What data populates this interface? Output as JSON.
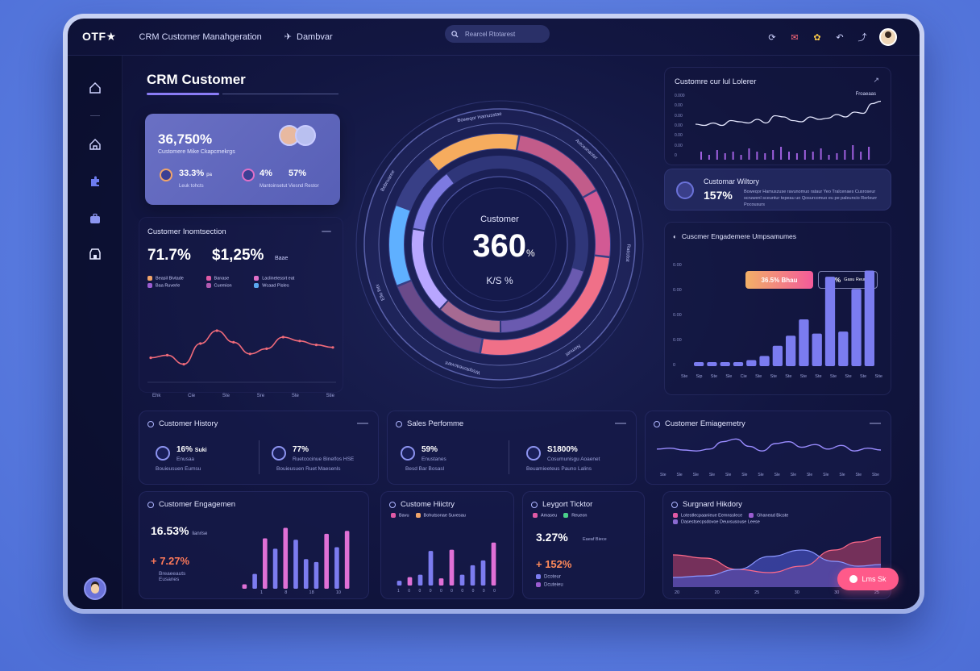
{
  "topbar": {
    "logo": "OTF★",
    "app_title": "CRM Customer Manahgeration",
    "dash_label": "Dambvar",
    "search_text": "Rearcel Rtotarest"
  },
  "header": {
    "title": "CRM Customer"
  },
  "hero_card": {
    "value": "36,750%",
    "subtitle": "Customere Mike Ckapcmekrgs",
    "stat1": "33.3%",
    "stat1_suffix": "pa",
    "stat1_label": "Leuk tohcts",
    "stat2": "4%",
    "stat2_label": "Mantoinsetut",
    "stat3": "57%",
    "stat3_label": "Viesnd Restor"
  },
  "info_panel": {
    "title": "Customer Inomtsection",
    "value1": "71.7%",
    "value2": "$1,25%",
    "value2_suffix": "Baae",
    "legend": [
      {
        "label": "Beasil Bivtade",
        "color": "#f0a46a"
      },
      {
        "label": "Banase",
        "color": "#e05aa5"
      },
      {
        "label": "Laclinetessrt eat",
        "color": "#e070c8"
      },
      {
        "label": "Baa Ruverle",
        "color": "#9a5cd0"
      },
      {
        "label": "Cuemion",
        "color": "#b05ab0"
      },
      {
        "label": "Wcaad Pisles",
        "color": "#5aa8f0"
      }
    ],
    "x_labels": [
      "Ehk",
      "Cie",
      "Ste",
      "Sre",
      "Ste",
      "Stie"
    ],
    "line_points": [
      38,
      42,
      28,
      60,
      80,
      62,
      44,
      52,
      70,
      64,
      58,
      54
    ],
    "line_color": "#f06a7a"
  },
  "gauge": {
    "label": "Customer",
    "value": "360",
    "unit": "%",
    "sublabel": "K/S %",
    "ring_labels": [
      "Boweqor Hamusstae",
      "Avtcesnaoter",
      "Ratiobst",
      "Nomuet",
      "Wssptoneauvant",
      "Eflo lhtx",
      "Bebnvaree"
    ],
    "outer_segments": [
      {
        "pct": 0.14,
        "color": "#f6ac5e"
      },
      {
        "pct": 0.14,
        "color": "#c25c8a"
      },
      {
        "pct": 0.1,
        "color": "#d25a94"
      },
      {
        "pct": 0.26,
        "color": "#f07088"
      },
      {
        "pct": 0.16,
        "color": "#6a4a8a"
      },
      {
        "pct": 0.12,
        "color": "#5fb0ff"
      }
    ],
    "inner_segments": [
      {
        "pct": 0.2,
        "color": "#6a5ab0"
      },
      {
        "pct": 0.12,
        "color": "#a66a92"
      },
      {
        "pct": 0.16,
        "color": "#b8a6ff"
      },
      {
        "pct": 0.12,
        "color": "#7d7ae0"
      }
    ]
  },
  "sparkline_panel": {
    "title": "Customre cur lul Lolerer",
    "legend": "Froaeaas",
    "y_labels": [
      "0.000",
      "0.00",
      "0.00",
      "0.00",
      "0.00",
      "0.00",
      "0"
    ],
    "line_points": [
      32,
      30,
      34,
      30,
      38,
      36,
      34,
      40,
      34,
      46,
      44,
      38,
      36,
      44,
      40,
      42,
      48,
      44,
      52,
      50,
      66,
      70
    ],
    "bars": [
      10,
      6,
      12,
      8,
      10,
      6,
      14,
      10,
      8,
      12,
      16,
      10,
      8,
      12,
      10,
      14,
      6,
      8,
      12,
      18,
      10,
      16
    ]
  },
  "history_mini": {
    "title": "Customar Wiltory",
    "value": "157%",
    "desc": "Boweqor Hamuszuse ravunomuo rataur Yeo Tralcenaes Cusroseur scruwenl sceuntur tepeau uo Qosurcomuo eu pe paleuncio Rerleurr Pocousurs"
  },
  "engagement_bars": {
    "title": "Cuscmer Engademere Umpsamumes",
    "y_labels": [
      "0.00",
      "0.00",
      "0.00",
      "0.00",
      "0"
    ],
    "x_labels": [
      "Ste",
      "Sip",
      "Ste",
      "Sle",
      "Cie",
      "Ste",
      "Ste",
      "Ste",
      "Ste",
      "Ste",
      "Ste",
      "Ste",
      "Ste",
      "Stie"
    ],
    "badge1": "36.5% Bhau",
    "badge2": "97%",
    "badge2_suffix": "Gasu Reure",
    "values": [
      0.04,
      0.04,
      0.04,
      0.04,
      0.06,
      0.1,
      0.2,
      0.3,
      0.46,
      0.32,
      0.88,
      0.34,
      0.76,
      0.94
    ]
  },
  "row2": [
    {
      "title": "Customer History",
      "a_value": "16%",
      "a_suffix": "Suki",
      "a_label": "Enusaa",
      "a_foot": "Bouieusuen Eumsu",
      "b_value": "77%",
      "b_label": "Ruetcocinue Binelfos HSE",
      "b_foot": "Bouieusuen Ruet Maesenls"
    },
    {
      "title": "Sales Perfomme",
      "a_value": "59%",
      "a_label": "Enustanes",
      "a_foot": "Besd Bar Bosasl",
      "b_value": "S1800%",
      "b_label": "Cosumunisgu Aoaenet",
      "b_foot": "Beuamieeteus Pauno Lalins"
    },
    {
      "title": "Customer Emiagemetry",
      "x_labels": [
        "Ste",
        "Sle",
        "Sle",
        "Sle",
        "Sle",
        "Sle",
        "Sle",
        "Sle",
        "Sle",
        "Sle",
        "Sle",
        "Sle",
        "Ste",
        "Sbe"
      ],
      "line_points": [
        44,
        46,
        42,
        40,
        44,
        60,
        66,
        50,
        40,
        56,
        60,
        48,
        54,
        44,
        52,
        40,
        46,
        42
      ]
    }
  ],
  "row3": [
    {
      "title": "Customer Engagemen",
      "value": "16.53%",
      "suffix": "lianrise",
      "delta": "+ 7.27%",
      "delta_label": "Breaeeauts Eusanes",
      "x_labels": [
        "1",
        "8",
        "18",
        "10"
      ],
      "values": [
        0.06,
        0.2,
        0.68,
        0.54,
        0.82,
        0.66,
        0.4,
        0.36,
        0.74,
        0.56,
        0.78
      ],
      "colors": [
        "#e070d6",
        "#7c7cf0",
        "#e070d6",
        "#7c7cf0",
        "#e070d6",
        "#7c7cf0",
        "#7c7cf0",
        "#7c7cf0",
        "#e070d6",
        "#7c7cf0",
        "#e070d6"
      ]
    },
    {
      "title": "Custome Hiictry",
      "legend": [
        {
          "label": "Bavu",
          "color": "#e05aa5"
        },
        {
          "label": "Bohutsonae Suvesau",
          "color": "#f0a46a"
        }
      ],
      "x_labels": [
        "1",
        "0",
        "0",
        "0",
        "0",
        "0",
        "0",
        "0",
        "0",
        "0"
      ],
      "values": [
        0.08,
        0.14,
        0.18,
        0.58,
        0.12,
        0.6,
        0.18,
        0.34,
        0.42,
        0.72
      ],
      "colors": [
        "#7c7cf0",
        "#e070d6",
        "#7c7cf0",
        "#7c7cf0",
        "#e070d6",
        "#e070d6",
        "#7c7cf0",
        "#7c7cf0",
        "#7c7cf0",
        "#e070d6"
      ]
    },
    {
      "title": "Leygort Ticktor",
      "legend": [
        {
          "label": "Amaseu",
          "color": "#e05aa5"
        },
        {
          "label": "Reueon",
          "color": "#4ad08a"
        }
      ],
      "value": "3.27%",
      "suffix": "Eaeaf Biece",
      "delta": "+ 152%",
      "foot1": "Dcoteur",
      "foot2": "Dcuteieu"
    },
    {
      "title": "Surgnard Hikdory",
      "legend": [
        {
          "label": "Lotestlecpaanieue Eemnsslece",
          "color": "#e05aa5"
        },
        {
          "label": "Ghanead Bicste",
          "color": "#9a5cd0"
        },
        {
          "label": "Dasestsecpsdovoe Deuvsusouse Leese",
          "color": "#8a6ad0"
        }
      ],
      "x_labels": [
        "20",
        "20",
        "25",
        "30",
        "30",
        "25"
      ],
      "cta": "Lms Sk"
    }
  ]
}
